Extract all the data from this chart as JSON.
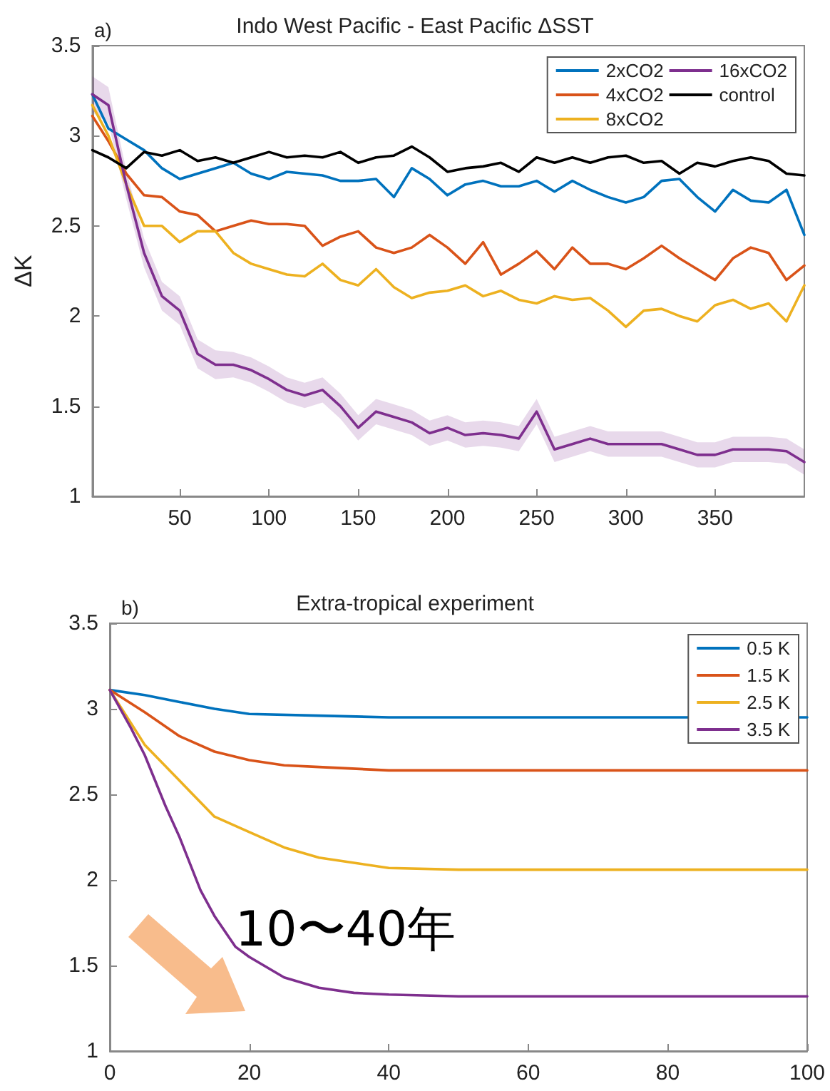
{
  "chart_data": [
    {
      "type": "line",
      "title": "Indo West Pacific - East Pacific ΔSST",
      "ylabel": "ΔK",
      "annotations": [
        "a)"
      ],
      "xlim": [
        1,
        400
      ],
      "xticks": [
        50,
        100,
        150,
        200,
        250,
        300,
        350
      ],
      "ylim": [
        1,
        3.5
      ],
      "yticks": [
        1,
        1.5,
        2,
        2.5,
        3,
        3.5
      ],
      "grid": false,
      "legend": "top right",
      "marker": "none",
      "line_style": "solid",
      "x": [
        1,
        10,
        20,
        30,
        40,
        50,
        60,
        70,
        80,
        90,
        100,
        110,
        120,
        130,
        140,
        150,
        160,
        170,
        180,
        190,
        200,
        210,
        220,
        230,
        240,
        250,
        260,
        270,
        280,
        290,
        300,
        310,
        320,
        330,
        340,
        350,
        360,
        370,
        380,
        390,
        400
      ],
      "series": [
        {
          "name": "2xCO2",
          "color": "#0072bd",
          "values": [
            3.23,
            3.04,
            2.98,
            2.92,
            2.82,
            2.76,
            2.79,
            2.82,
            2.85,
            2.79,
            2.76,
            2.8,
            2.79,
            2.78,
            2.75,
            2.75,
            2.76,
            2.66,
            2.82,
            2.76,
            2.67,
            2.73,
            2.75,
            2.72,
            2.72,
            2.75,
            2.69,
            2.75,
            2.7,
            2.66,
            2.63,
            2.66,
            2.75,
            2.76,
            2.66,
            2.58,
            2.7,
            2.64,
            2.63,
            2.7,
            2.45
          ]
        },
        {
          "name": "4xCO2",
          "color": "#d95319",
          "values": [
            3.11,
            2.97,
            2.79,
            2.67,
            2.66,
            2.58,
            2.56,
            2.47,
            2.5,
            2.53,
            2.51,
            2.51,
            2.5,
            2.39,
            2.44,
            2.47,
            2.38,
            2.35,
            2.38,
            2.45,
            2.38,
            2.29,
            2.41,
            2.23,
            2.29,
            2.36,
            2.26,
            2.38,
            2.29,
            2.29,
            2.26,
            2.32,
            2.39,
            2.32,
            2.26,
            2.2,
            2.32,
            2.38,
            2.35,
            2.2,
            2.28
          ]
        },
        {
          "name": "8xCO2",
          "color": "#edb120",
          "values": [
            3.17,
            3.0,
            2.73,
            2.5,
            2.5,
            2.41,
            2.47,
            2.47,
            2.35,
            2.29,
            2.26,
            2.23,
            2.22,
            2.29,
            2.2,
            2.17,
            2.26,
            2.16,
            2.1,
            2.13,
            2.14,
            2.17,
            2.11,
            2.14,
            2.09,
            2.07,
            2.11,
            2.09,
            2.1,
            2.03,
            1.94,
            2.03,
            2.04,
            2.0,
            1.97,
            2.06,
            2.09,
            2.04,
            2.07,
            1.97,
            2.17
          ]
        },
        {
          "name": "16xCO2",
          "color": "#7e2f8e",
          "values": [
            3.23,
            3.17,
            2.73,
            2.35,
            2.11,
            2.03,
            1.79,
            1.73,
            1.73,
            1.7,
            1.65,
            1.59,
            1.56,
            1.59,
            1.5,
            1.38,
            1.47,
            1.44,
            1.41,
            1.35,
            1.38,
            1.34,
            1.35,
            1.34,
            1.32,
            1.47,
            1.26,
            1.29,
            1.32,
            1.29,
            1.29,
            1.29,
            1.29,
            1.26,
            1.23,
            1.23,
            1.26,
            1.26,
            1.26,
            1.25,
            1.19
          ],
          "lower": [
            3.13,
            3.07,
            2.65,
            2.27,
            2.03,
            1.95,
            1.71,
            1.65,
            1.66,
            1.63,
            1.58,
            1.52,
            1.49,
            1.52,
            1.43,
            1.31,
            1.4,
            1.37,
            1.34,
            1.28,
            1.31,
            1.27,
            1.28,
            1.27,
            1.25,
            1.4,
            1.19,
            1.22,
            1.25,
            1.22,
            1.22,
            1.22,
            1.22,
            1.19,
            1.16,
            1.16,
            1.19,
            1.19,
            1.19,
            1.18,
            1.12
          ],
          "upper": [
            3.33,
            3.27,
            2.81,
            2.43,
            2.19,
            2.11,
            1.87,
            1.81,
            1.8,
            1.77,
            1.72,
            1.66,
            1.63,
            1.66,
            1.57,
            1.45,
            1.54,
            1.51,
            1.48,
            1.42,
            1.45,
            1.41,
            1.42,
            1.41,
            1.39,
            1.54,
            1.33,
            1.36,
            1.39,
            1.36,
            1.36,
            1.36,
            1.36,
            1.33,
            1.3,
            1.3,
            1.33,
            1.33,
            1.33,
            1.32,
            1.26
          ]
        },
        {
          "name": "control",
          "color": "#000000",
          "values": [
            2.92,
            2.88,
            2.82,
            2.91,
            2.89,
            2.92,
            2.86,
            2.88,
            2.85,
            2.88,
            2.91,
            2.88,
            2.89,
            2.88,
            2.91,
            2.85,
            2.88,
            2.89,
            2.94,
            2.88,
            2.8,
            2.82,
            2.83,
            2.85,
            2.8,
            2.88,
            2.85,
            2.88,
            2.85,
            2.88,
            2.89,
            2.85,
            2.86,
            2.79,
            2.85,
            2.83,
            2.86,
            2.88,
            2.86,
            2.79,
            2.78
          ]
        }
      ]
    },
    {
      "type": "line",
      "title": "Extra-tropical experiment",
      "annotations": [
        "b)",
        "10〜40年"
      ],
      "xlim": [
        0,
        100
      ],
      "xticks": [
        0,
        20,
        40,
        60,
        80,
        100
      ],
      "ylim": [
        1,
        3.5
      ],
      "yticks": [
        1,
        1.5,
        2,
        2.5,
        3,
        3.5
      ],
      "grid": false,
      "legend": "top right",
      "marker": "none",
      "line_style": "solid",
      "series": [
        {
          "name": "0.5 K",
          "color": "#0072bd",
          "x": [
            0,
            5,
            10,
            15,
            20,
            30,
            40,
            60,
            80,
            100
          ],
          "values": [
            3.11,
            3.08,
            3.04,
            3.0,
            2.97,
            2.96,
            2.95,
            2.95,
            2.95,
            2.95
          ]
        },
        {
          "name": "1.5 K",
          "color": "#d95319",
          "x": [
            0,
            5,
            10,
            15,
            20,
            25,
            30,
            40,
            60,
            80,
            100
          ],
          "values": [
            3.11,
            2.98,
            2.84,
            2.75,
            2.7,
            2.67,
            2.66,
            2.64,
            2.64,
            2.64,
            2.64
          ]
        },
        {
          "name": "2.5 K",
          "color": "#edb120",
          "x": [
            0,
            5,
            10,
            15,
            20,
            25,
            30,
            35,
            40,
            50,
            60,
            80,
            100
          ],
          "values": [
            3.11,
            2.79,
            2.58,
            2.37,
            2.28,
            2.19,
            2.13,
            2.1,
            2.07,
            2.06,
            2.06,
            2.06,
            2.06
          ]
        },
        {
          "name": "3.5 K",
          "color": "#7e2f8e",
          "x": [
            0,
            3,
            5,
            8,
            10,
            13,
            15,
            18,
            20,
            25,
            30,
            35,
            40,
            50,
            60,
            80,
            100
          ],
          "values": [
            3.11,
            2.89,
            2.73,
            2.43,
            2.25,
            1.94,
            1.79,
            1.61,
            1.55,
            1.43,
            1.37,
            1.34,
            1.33,
            1.32,
            1.32,
            1.32,
            1.32
          ]
        }
      ]
    }
  ]
}
